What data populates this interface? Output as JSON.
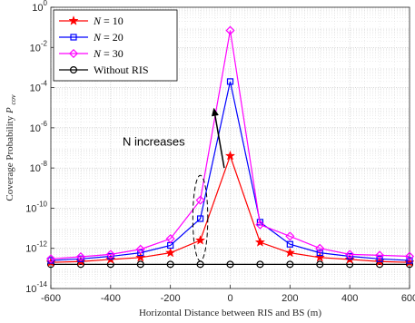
{
  "chart_data": {
    "type": "line",
    "xlabel": "Horizontal Distance between RIS and BS (m)",
    "ylabel": "Coverage Probability",
    "ylabel_sub": "cov",
    "yscale": "log",
    "xlim": [
      -600,
      600
    ],
    "ylim_exp": [
      -14,
      0
    ],
    "x_ticks": [
      "-600",
      "-400",
      "-200",
      "0",
      "200",
      "400",
      "600"
    ],
    "y_tick_exponents": [
      "0",
      "-2",
      "-4",
      "-6",
      "-8",
      "-10",
      "-12",
      "-14"
    ],
    "y_tick_base": "10",
    "grid": true,
    "legend_position": "top-left",
    "x": [
      -600,
      -500,
      -400,
      -300,
      -200,
      -100,
      0,
      100,
      200,
      300,
      400,
      500,
      600
    ],
    "series": [
      {
        "name": "N = 10",
        "legend_var": "N",
        "legend_eq": "= 10",
        "color": "#ff0000",
        "marker": "star",
        "values": [
          2e-13,
          2.2e-13,
          2.8e-13,
          3.5e-13,
          6e-13,
          2.5e-12,
          4e-08,
          2e-12,
          6e-13,
          3.5e-13,
          2.8e-13,
          2.2e-13,
          2e-13
        ]
      },
      {
        "name": "N = 20",
        "legend_var": "N",
        "legend_eq": "= 20",
        "color": "#0000ff",
        "marker": "square",
        "values": [
          2.5e-13,
          3e-13,
          4e-13,
          6e-13,
          1.4e-12,
          3e-11,
          0.0002,
          2e-11,
          1.6e-12,
          6e-13,
          4e-13,
          3e-13,
          2.5e-13
        ]
      },
      {
        "name": "N = 30",
        "legend_var": "N",
        "legend_eq": "= 30",
        "color": "#ff00ff",
        "marker": "diamond",
        "values": [
          3e-13,
          3.8e-13,
          5e-13,
          9e-13,
          3e-12,
          2.5e-10,
          0.07,
          1.5e-11,
          4e-12,
          1e-12,
          5e-13,
          4.5e-13,
          4e-13
        ]
      },
      {
        "name": "Without RIS",
        "legend_var": "",
        "legend_eq": "Without RIS",
        "color": "#000000",
        "marker": "circle",
        "values": [
          1.6e-13,
          1.6e-13,
          1.6e-13,
          1.6e-13,
          1.6e-13,
          1.6e-13,
          1.6e-13,
          1.6e-13,
          1.6e-13,
          1.6e-13,
          1.6e-13,
          1.6e-13,
          1.6e-13
        ]
      }
    ],
    "annotations": [
      {
        "text": "N increases",
        "arrow_from": [
          -20,
          1e-08
        ],
        "arrow_to": [
          -55,
          1e-05
        ]
      },
      {
        "type": "ellipse",
        "center": [
          -100,
          1e-11
        ],
        "width": 50,
        "y_range": [
          1e-12,
          1e-09
        ]
      }
    ]
  }
}
